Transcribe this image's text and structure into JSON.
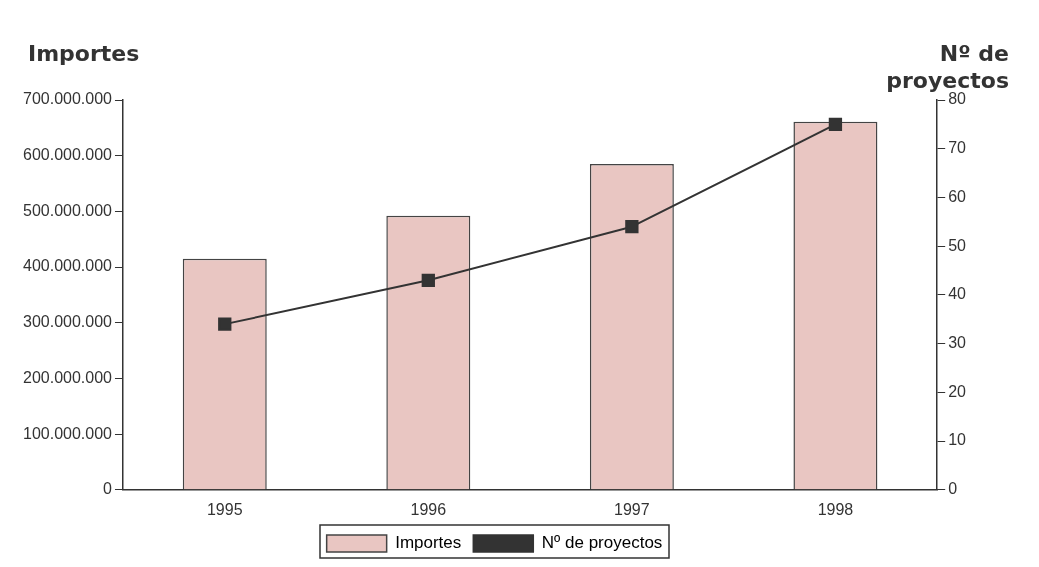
{
  "chart_data": {
    "type": "bar",
    "ylabel": "Importes",
    "y2label": "Nº de proyectos",
    "categories": [
      "1995",
      "1996",
      "1997",
      "1998"
    ],
    "series": [
      {
        "name": "Importes",
        "color": "#e9c6c2",
        "values": [
          415000000,
          492000000,
          585000000,
          661000000
        ]
      },
      {
        "name": "Nº de proyectos",
        "type": "line",
        "axis": "y2",
        "color": "#333333",
        "values": [
          34,
          43,
          54,
          75
        ]
      }
    ],
    "ylim": [
      0,
      700000000
    ],
    "yticks": [
      {
        "value": 0,
        "label": "0"
      },
      {
        "value": 100000000,
        "label": "100.000.000"
      },
      {
        "value": 200000000,
        "label": "200.000.000"
      },
      {
        "value": 300000000,
        "label": "300.000.000"
      },
      {
        "value": 400000000,
        "label": "400.000.000"
      },
      {
        "value": 500000000,
        "label": "500.000.000"
      },
      {
        "value": 600000000,
        "label": "600.000.000"
      },
      {
        "value": 700000000,
        "label": "700.000.000"
      }
    ],
    "y2lim": [
      0,
      80
    ],
    "y2ticks": [
      0,
      10,
      20,
      30,
      40,
      50,
      60,
      70,
      80
    ],
    "grid": false,
    "legend": "bottom",
    "marker": "square",
    "line_style": "solid"
  }
}
